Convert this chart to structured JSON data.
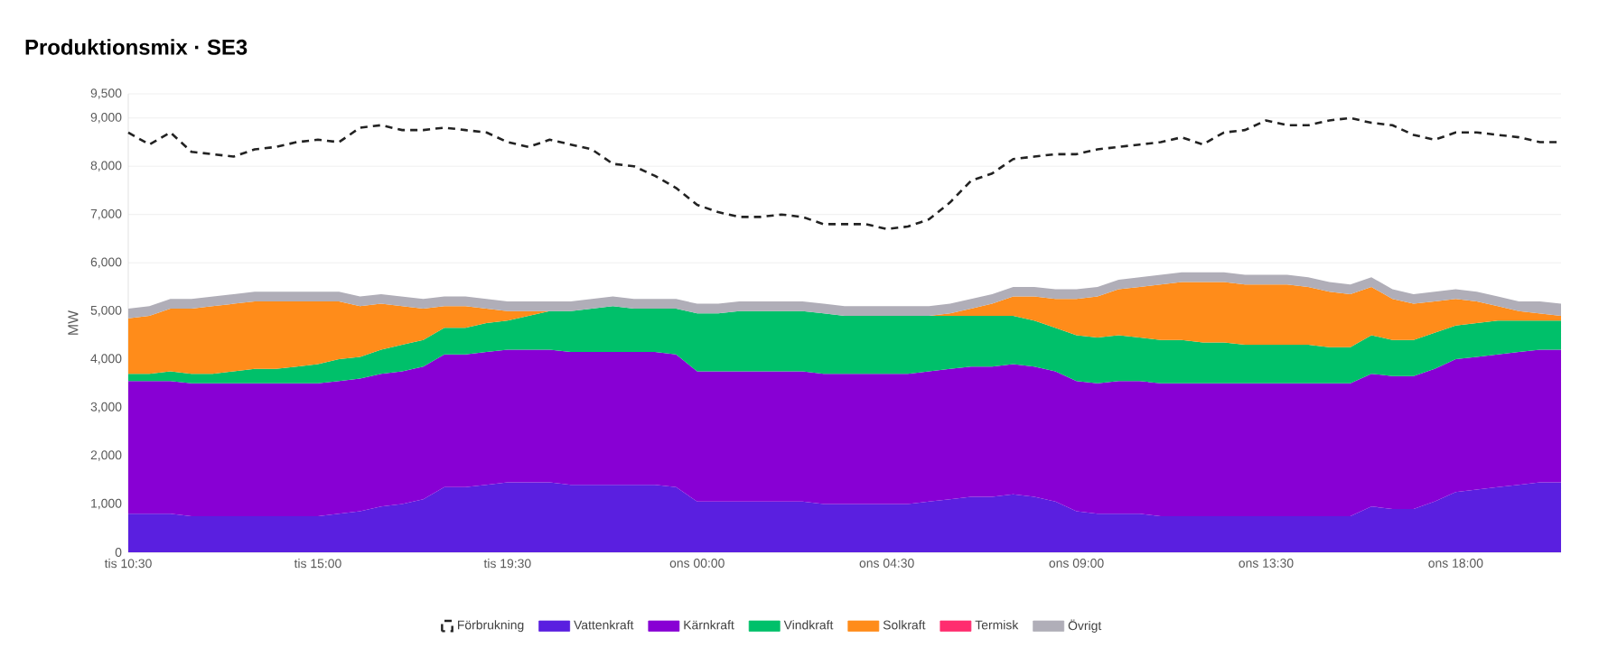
{
  "chart_data": {
    "type": "area",
    "title": "Produktionsmix · SE3",
    "ylabel": "MW",
    "stacked": true,
    "grid": "y",
    "legend": "bottom",
    "categories": [
      "tis 10:30",
      null,
      null,
      null,
      null,
      null,
      null,
      null,
      null,
      "tis 15:00",
      null,
      null,
      null,
      null,
      null,
      null,
      null,
      null,
      "tis 19:30",
      null,
      null,
      null,
      null,
      null,
      null,
      null,
      null,
      "ons 00:00",
      null,
      null,
      null,
      null,
      null,
      null,
      null,
      null,
      "ons 04:30",
      null,
      null,
      null,
      null,
      null,
      null,
      null,
      null,
      "ons 09:00",
      null,
      null,
      null,
      null,
      null,
      null,
      null,
      null,
      "ons 13:30",
      null,
      null,
      null,
      null,
      null,
      null,
      null,
      null,
      "ons 18:00",
      null,
      null,
      null,
      null,
      null
    ],
    "ylim": [
      0,
      9500
    ],
    "yticks": [
      {
        "value": 0,
        "label": "0"
      },
      {
        "value": 1000,
        "label": "1,000"
      },
      {
        "value": 2000,
        "label": "2,000"
      },
      {
        "value": 3000,
        "label": "3,000"
      },
      {
        "value": 4000,
        "label": "4,000"
      },
      {
        "value": 5000,
        "label": "5,000"
      },
      {
        "value": 6000,
        "label": "6,000"
      },
      {
        "value": 7000,
        "label": "7,000"
      },
      {
        "value": 8000,
        "label": "8,000"
      },
      {
        "value": 9000,
        "label": "9,000"
      },
      {
        "value": 9500,
        "label": "9,500"
      }
    ],
    "series": [
      {
        "name": "Förbrukning",
        "type": "line",
        "line_style": "dashed",
        "color": "#222222",
        "values": [
          8700,
          8450,
          8700,
          8300,
          8250,
          8200,
          8350,
          8400,
          8500,
          8550,
          8500,
          8800,
          8850,
          8750,
          8750,
          8800,
          8750,
          8700,
          8500,
          8400,
          8550,
          8450,
          8350,
          8050,
          8000,
          7800,
          7550,
          7200,
          7050,
          6950,
          6950,
          7000,
          6950,
          6800,
          6800,
          6800,
          6700,
          6750,
          6900,
          7250,
          7700,
          7850,
          8150,
          8200,
          8250,
          8250,
          8350,
          8400,
          8450,
          8500,
          8600,
          8450,
          8700,
          8750,
          8950,
          8850,
          8850,
          8950,
          9000,
          8900,
          8850,
          8650,
          8550,
          8700,
          8700,
          8650,
          8600,
          8500,
          8500
        ]
      },
      {
        "name": "Vattenkraft",
        "color": "#5a1fe0",
        "values": [
          800,
          800,
          800,
          750,
          750,
          750,
          750,
          750,
          750,
          750,
          800,
          850,
          950,
          1000,
          1100,
          1350,
          1350,
          1400,
          1450,
          1450,
          1450,
          1400,
          1400,
          1400,
          1400,
          1400,
          1350,
          1050,
          1050,
          1050,
          1050,
          1050,
          1050,
          1000,
          1000,
          1000,
          1000,
          1000,
          1050,
          1100,
          1150,
          1150,
          1200,
          1150,
          1050,
          850,
          800,
          800,
          800,
          750,
          750,
          750,
          750,
          750,
          750,
          750,
          750,
          750,
          750,
          950,
          900,
          900,
          1050,
          1250,
          1300,
          1350,
          1400,
          1450,
          1450
        ]
      },
      {
        "name": "Kärnkraft",
        "color": "#8800d4",
        "values": [
          2750,
          2750,
          2750,
          2750,
          2750,
          2750,
          2750,
          2750,
          2750,
          2750,
          2750,
          2750,
          2750,
          2750,
          2750,
          2750,
          2750,
          2750,
          2750,
          2750,
          2750,
          2750,
          2750,
          2750,
          2750,
          2750,
          2750,
          2700,
          2700,
          2700,
          2700,
          2700,
          2700,
          2700,
          2700,
          2700,
          2700,
          2700,
          2700,
          2700,
          2700,
          2700,
          2700,
          2700,
          2700,
          2700,
          2700,
          2750,
          2750,
          2750,
          2750,
          2750,
          2750,
          2750,
          2750,
          2750,
          2750,
          2750,
          2750,
          2750,
          2750,
          2750,
          2750,
          2750,
          2750,
          2750,
          2750,
          2750,
          2750
        ]
      },
      {
        "name": "Vindkraft",
        "color": "#00c06a",
        "values": [
          150,
          150,
          200,
          200,
          200,
          250,
          300,
          300,
          350,
          400,
          450,
          450,
          500,
          550,
          550,
          550,
          550,
          600,
          600,
          700,
          800,
          850,
          900,
          950,
          900,
          900,
          950,
          1200,
          1200,
          1250,
          1250,
          1250,
          1250,
          1250,
          1200,
          1200,
          1200,
          1200,
          1150,
          1100,
          1050,
          1050,
          1000,
          950,
          900,
          950,
          950,
          950,
          900,
          900,
          900,
          850,
          850,
          800,
          800,
          800,
          800,
          750,
          750,
          800,
          750,
          750,
          750,
          700,
          700,
          700,
          650,
          600,
          600
        ]
      },
      {
        "name": "Solkraft",
        "color": "#ff8c1a",
        "values": [
          1150,
          1200,
          1300,
          1350,
          1400,
          1400,
          1400,
          1400,
          1350,
          1300,
          1200,
          1050,
          950,
          800,
          650,
          450,
          450,
          300,
          200,
          100,
          0,
          0,
          0,
          0,
          0,
          0,
          0,
          0,
          0,
          0,
          0,
          0,
          0,
          0,
          0,
          0,
          0,
          0,
          0,
          50,
          150,
          250,
          400,
          500,
          600,
          750,
          850,
          950,
          1050,
          1150,
          1200,
          1250,
          1250,
          1250,
          1250,
          1250,
          1200,
          1150,
          1100,
          1000,
          850,
          750,
          650,
          550,
          450,
          300,
          200,
          150,
          100
        ]
      },
      {
        "name": "Termisk",
        "color": "#ff2d6f",
        "values": [
          null,
          null,
          null,
          null,
          null,
          null,
          null,
          null,
          null,
          null,
          null,
          null,
          null,
          null,
          null,
          null,
          null,
          null,
          null,
          null,
          null,
          null,
          null,
          null,
          null,
          null,
          null,
          null,
          null,
          null,
          null,
          null,
          null,
          null,
          null,
          null,
          null,
          null,
          null,
          null,
          null,
          null,
          null,
          null,
          null,
          null,
          null,
          null,
          null,
          null,
          null,
          null,
          null,
          null,
          null,
          null,
          null,
          null,
          null,
          null,
          null,
          null,
          null,
          null,
          null,
          null,
          null,
          null,
          null
        ]
      },
      {
        "name": "Övrigt",
        "color": "#b0aeb8",
        "values": [
          200,
          200,
          200,
          200,
          200,
          200,
          200,
          200,
          200,
          200,
          200,
          200,
          200,
          200,
          200,
          200,
          200,
          200,
          200,
          200,
          200,
          200,
          200,
          200,
          200,
          200,
          200,
          200,
          200,
          200,
          200,
          200,
          200,
          200,
          200,
          200,
          200,
          200,
          200,
          200,
          200,
          200,
          200,
          200,
          200,
          200,
          200,
          200,
          200,
          200,
          200,
          200,
          200,
          200,
          200,
          200,
          200,
          200,
          200,
          200,
          200,
          200,
          200,
          200,
          200,
          200,
          200,
          250,
          250
        ]
      }
    ]
  }
}
